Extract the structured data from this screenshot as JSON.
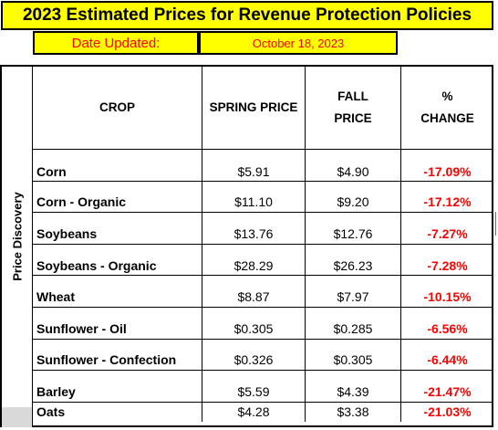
{
  "title": "2023 Estimated Prices for Revenue Protection Policies",
  "updated": {
    "label": "Date Updated:",
    "value": "October 18, 2023"
  },
  "sidebar_label": "Price Discovery",
  "headers": {
    "crop": "CROP",
    "spring": "SPRING PRICE",
    "fall_1": "FALL",
    "fall_2": "PRICE",
    "change_1": "%",
    "change_2": "CHANGE"
  },
  "rows": [
    {
      "crop": "Corn",
      "spring": "$5.91",
      "fall": "$4.90",
      "change": "-17.09%"
    },
    {
      "crop": "Corn - Organic",
      "spring": "$11.10",
      "fall": "$9.20",
      "change": "-17.12%"
    },
    {
      "crop": "Soybeans",
      "spring": "$13.76",
      "fall": "$12.76",
      "change": "-7.27%"
    },
    {
      "crop": "Soybeans - Organic",
      "spring": "$28.29",
      "fall": "$26.23",
      "change": "-7.28%"
    },
    {
      "crop": "Wheat",
      "spring": "$8.87",
      "fall": "$7.97",
      "change": "-10.15%"
    },
    {
      "crop": "Sunflower - Oil",
      "spring": "$0.305",
      "fall": "$0.285",
      "change": "-6.56%"
    },
    {
      "crop": "Sunflower - Confection",
      "spring": "$0.326",
      "fall": "$0.305",
      "change": "-6.44%"
    },
    {
      "crop": "Barley",
      "spring": "$5.59",
      "fall": "$4.39",
      "change": "-21.47%"
    },
    {
      "crop": "Oats",
      "spring": "$4.28",
      "fall": "$3.38",
      "change": "-21.03%"
    }
  ],
  "colors": {
    "highlight": "#ffff00",
    "negative": "#ff0000",
    "grey_cell": "#d9d9d9"
  }
}
